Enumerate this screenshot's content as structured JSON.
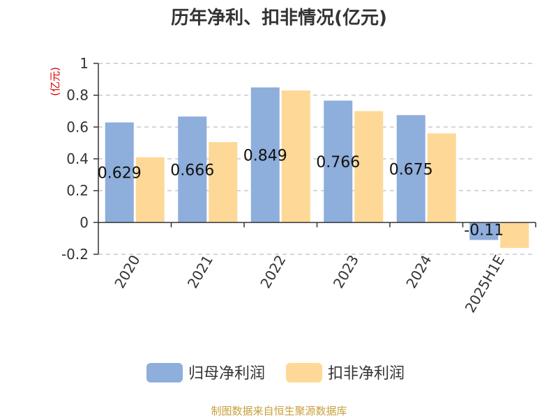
{
  "chart_data": {
    "type": "bar",
    "title": "历年净利、扣非情况(亿元)",
    "unit_label": "(亿元)",
    "categories": [
      "2020",
      "2021",
      "2022",
      "2023",
      "2024",
      "2025H1E"
    ],
    "series": [
      {
        "name": "归母净利润",
        "values": [
          0.629,
          0.666,
          0.849,
          0.766,
          0.675,
          -0.11
        ],
        "data_labels": [
          "0.629",
          "0.666",
          "0.849",
          "0.766",
          "0.675",
          "-0.11"
        ]
      },
      {
        "name": "扣非净利润",
        "values": [
          0.41,
          0.505,
          0.83,
          0.7,
          0.56,
          -0.16
        ]
      }
    ],
    "ylim": [
      -0.2,
      1
    ],
    "yticks": [
      -0.2,
      0,
      0.2,
      0.4,
      0.6,
      0.8,
      1
    ],
    "ytick_labels": [
      "-0.2",
      "0",
      "0.2",
      "0.4",
      "0.6",
      "0.8",
      "1"
    ],
    "grid": true,
    "legend_position": "bottom",
    "colors": [
      "#8eaedb",
      "#fed896"
    ]
  },
  "source": "制图数据来自恒生聚源数据库"
}
